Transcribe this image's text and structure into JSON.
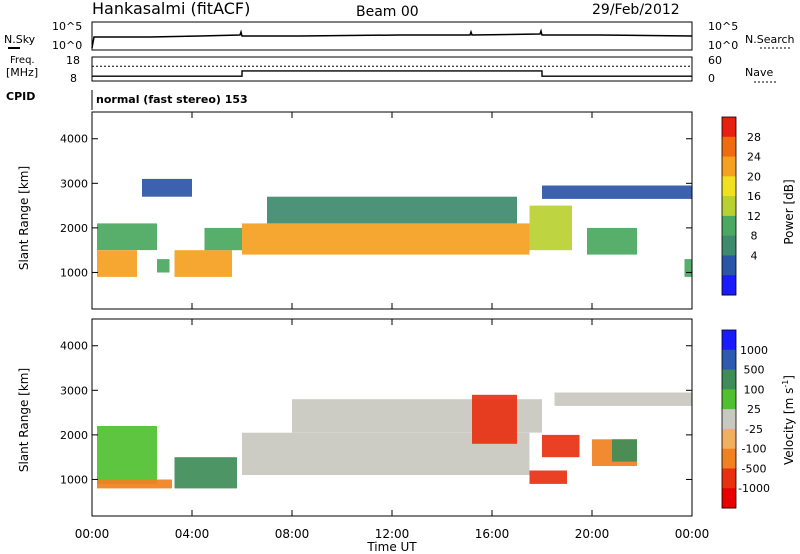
{
  "header": {
    "station": "Hankasalmi (fitACF)",
    "beam": "Beam 00",
    "date": "29/Feb/2012"
  },
  "noise_panel": {
    "left_label": "N.Sky",
    "right_label": "N.Search",
    "left_ticks": [
      "10^5",
      "10^0"
    ],
    "right_ticks": [
      "10^5",
      "10^0"
    ]
  },
  "freq_panel": {
    "left_label_line1": "Freq.",
    "left_label_line2": "[MHz]",
    "left_ticks": [
      "18",
      "8"
    ],
    "right_label": "Nave",
    "right_ticks": [
      "60",
      "0"
    ],
    "freq_steps": [
      {
        "t": 0,
        "mhz": 10.0
      },
      {
        "t": 6.0,
        "mhz": 10.0
      },
      {
        "t": 6.0,
        "mhz": 12.2
      },
      {
        "t": 18.0,
        "mhz": 12.2
      },
      {
        "t": 18.0,
        "mhz": 10.0
      },
      {
        "t": 24.0,
        "mhz": 10.0
      }
    ],
    "nave_level": 37
  },
  "cpid": {
    "label": "CPID",
    "value": "normal (fast stereo) 153"
  },
  "x_axis": {
    "label": "Time UT",
    "ticks": [
      "00:00",
      "04:00",
      "08:00",
      "12:00",
      "16:00",
      "20:00",
      "00:00"
    ],
    "range_hours": [
      0,
      24
    ]
  },
  "chart_data": [
    {
      "type": "heatmap",
      "panel": "power",
      "ylabel": "Slant Range [km]",
      "y_ticks": [
        "4000",
        "3000",
        "2000",
        "1000"
      ],
      "ylim_km": [
        180,
        4600
      ],
      "colorbar_label": "Power [dB]",
      "colorbar_ticks": [
        "28",
        "24",
        "20",
        "16",
        "12",
        "8",
        "4"
      ],
      "colorbar_colors": [
        "#1a1aff",
        "#2b55a8",
        "#3d8a6e",
        "#4aa860",
        "#b8d030",
        "#f0e020",
        "#f5a020",
        "#f06a10",
        "#e82010"
      ],
      "cells_note": "value_dB by time(h) and range(km)",
      "bands": [
        {
          "t0": 0.2,
          "t1": 1.8,
          "r0": 900,
          "r1": 1500,
          "value": 24
        },
        {
          "t0": 0.2,
          "t1": 2.6,
          "r0": 1500,
          "r1": 2100,
          "value": 14
        },
        {
          "t0": 2.6,
          "t1": 3.1,
          "r0": 1000,
          "r1": 1300,
          "value": 12
        },
        {
          "t0": 3.3,
          "t1": 5.6,
          "r0": 900,
          "r1": 1500,
          "value": 24
        },
        {
          "t0": 4.5,
          "t1": 6.0,
          "r0": 1500,
          "r1": 2000,
          "value": 14
        },
        {
          "t0": 6.0,
          "t1": 17.5,
          "r0": 1400,
          "r1": 2100,
          "value": 22
        },
        {
          "t0": 7.0,
          "t1": 17.0,
          "r0": 2100,
          "r1": 2700,
          "value": 10
        },
        {
          "t0": 2.0,
          "t1": 4.0,
          "r0": 2700,
          "r1": 3100,
          "value": 8
        },
        {
          "t0": 17.5,
          "t1": 19.2,
          "r0": 1500,
          "r1": 2500,
          "value": 16
        },
        {
          "t0": 19.8,
          "t1": 21.8,
          "r0": 1400,
          "r1": 2000,
          "value": 14
        },
        {
          "t0": 18.0,
          "t1": 24.0,
          "r0": 2650,
          "r1": 2950,
          "value": 8
        },
        {
          "t0": 23.7,
          "t1": 24.0,
          "r0": 900,
          "r1": 1300,
          "value": 12
        }
      ]
    },
    {
      "type": "heatmap",
      "panel": "velocity",
      "ylabel": "Slant Range [km]",
      "y_ticks": [
        "4000",
        "3000",
        "2000",
        "1000"
      ],
      "ylim_km": [
        180,
        4600
      ],
      "colorbar_label": "Velocity [m s^-1]",
      "colorbar_ticks": [
        "1000",
        "500",
        "100",
        "25",
        "-25",
        "-100",
        "-500",
        "-1000"
      ],
      "colorbar_colors": [
        "#1a1aff",
        "#2d5ab0",
        "#3e8c58",
        "#50c030",
        "#c8c8c0",
        "#f0b060",
        "#f08020",
        "#e83010",
        "#e80000"
      ],
      "bands": [
        {
          "t0": 0.2,
          "t1": 2.6,
          "r0": 900,
          "r1": 2200,
          "value": 60
        },
        {
          "t0": 0.2,
          "t1": 3.2,
          "r0": 800,
          "r1": 1000,
          "value": -150
        },
        {
          "t0": 3.3,
          "t1": 5.8,
          "r0": 800,
          "r1": 1500,
          "value": 120
        },
        {
          "t0": 6.0,
          "t1": 17.5,
          "r0": 1100,
          "r1": 2050,
          "value": 0
        },
        {
          "t0": 8.0,
          "t1": 18.0,
          "r0": 2050,
          "r1": 2800,
          "value": 0
        },
        {
          "t0": 15.2,
          "t1": 17.0,
          "r0": 1800,
          "r1": 2900,
          "value": -300
        },
        {
          "t0": 18.0,
          "t1": 19.5,
          "r0": 1500,
          "r1": 2000,
          "value": -300
        },
        {
          "t0": 17.5,
          "t1": 19.0,
          "r0": 900,
          "r1": 1200,
          "value": -250
        },
        {
          "t0": 20.0,
          "t1": 21.8,
          "r0": 1300,
          "r1": 1900,
          "value": -80
        },
        {
          "t0": 20.8,
          "t1": 21.8,
          "r0": 1400,
          "r1": 1900,
          "value": 150
        },
        {
          "t0": 18.5,
          "t1": 24.0,
          "r0": 2650,
          "r1": 2950,
          "value": 0
        }
      ]
    }
  ]
}
